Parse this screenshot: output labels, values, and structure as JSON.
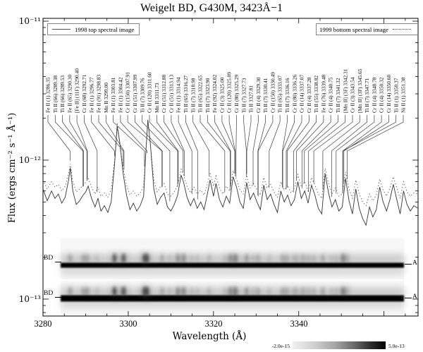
{
  "title": "Weigelt BD, G430M, 3423Å−1",
  "legend": {
    "series1": {
      "label": "1998 top spectral image",
      "style": "solid"
    },
    "series2": {
      "label": "1999 bottom spectral image",
      "style": "dotted"
    }
  },
  "axes": {
    "xlabel": "Wavelength (Å)",
    "ylabel": "Flux (ergs cm⁻² s⁻¹ Å⁻¹)",
    "x_ticks": [
      "3280",
      "3300",
      "3320",
      "3340"
    ],
    "y_ticks": [
      "10⁻¹¹",
      "10⁻¹²",
      "10⁻¹³"
    ]
  },
  "strip_labels": {
    "left": [
      "BD",
      "BD"
    ],
    "right": [
      "A",
      "A"
    ]
  },
  "colorbar": {
    "min_label": "-2.0e-15",
    "max_label": "5.0e-13"
  },
  "spectral_lines": [
    {
      "label": "Fe II (1) 3286.35",
      "wl": 3286.35
    },
    {
      "label": "Ti II (66) 3289.38",
      "wl": 3289.38
    },
    {
      "label": "Ti II (66) 3289.53",
      "wl": 3289.53
    },
    {
      "label": "Fe II (65) 3290.30",
      "wl": 3290.3
    },
    {
      "label": "[Fe II] (11F) 3290.40",
      "wl": 3290.4
    },
    {
      "label": "Cr II (68) 3292.71",
      "wl": 3292.71
    },
    {
      "label": "Fe II (1) 3296.77",
      "wl": 3296.77
    },
    {
      "label": "Fe II (91) 3298.83",
      "wl": 3298.83
    },
    {
      "label": "Mn II 3299.00",
      "wl": 3299.0
    },
    {
      "label": "Fe II (1) 3303.81",
      "wl": 3303.81
    },
    {
      "label": "Fe II (1) 3304.42",
      "wl": 3304.42
    },
    {
      "label": "Cr II (150) 3307.91",
      "wl": 3307.91
    },
    {
      "label": "Cr II (51) 3307.99",
      "wl": 3307.99
    },
    {
      "label": "Ti II (7) 3309.76",
      "wl": 3309.76
    },
    {
      "label": "Cr II (120) 3311.60",
      "wl": 3311.6
    },
    {
      "label": "Mn II 3311.73",
      "wl": 3311.73
    },
    {
      "label": "Cr II (51) 3312.88",
      "wl": 3312.88
    },
    {
      "label": "Cr II (51) 3313.13",
      "wl": 3313.13
    },
    {
      "label": "Fe II (1) 3314.94",
      "wl": 3314.94
    },
    {
      "label": "Ti II (65) 3316.27",
      "wl": 3316.27
    },
    {
      "label": "Ti II (7) 3318.98",
      "wl": 3318.98
    },
    {
      "label": "Ti II (65) 3322.65",
      "wl": 3322.65
    },
    {
      "label": "Ti II (7) 3323.90",
      "wl": 3323.9
    },
    {
      "label": "Fe II (92) 3324.02",
      "wl": 3324.02
    },
    {
      "label": "Cr II (3) 3325.00",
      "wl": 3325.0
    },
    {
      "label": "Cr II (120) 3325.09",
      "wl": 3325.09
    },
    {
      "label": "Cr II (80) 3325.29",
      "wl": 3325.29
    },
    {
      "label": "Ti II (7) 3327.73",
      "wl": 3327.73
    },
    {
      "label": "Ti II 3327.81",
      "wl": 3327.81
    },
    {
      "label": "Cr II (4) 3329.30",
      "wl": 3329.3
    },
    {
      "label": "Ti II (7) 3330.41",
      "wl": 3330.41
    },
    {
      "label": "Cr II (150) 3330.49",
      "wl": 3330.49
    },
    {
      "label": "Ti II (65) 3333.07",
      "wl": 3333.07
    },
    {
      "label": "Ti II (7) 3336.16",
      "wl": 3336.16
    },
    {
      "label": "Cr II (80) 3336.26",
      "wl": 3336.26
    },
    {
      "label": "Cr II (14) 3337.07",
      "wl": 3337.07
    },
    {
      "label": "Cr II (4) 3337.28",
      "wl": 3337.28
    },
    {
      "label": "Ti II (55) 3338.82",
      "wl": 3338.82
    },
    {
      "label": "Fe II (76) 3339.48",
      "wl": 3339.48
    },
    {
      "label": "Cr II (4) 3340.75",
      "wl": 3340.75
    },
    {
      "label": "Ti II (7) 3341.32",
      "wl": 3341.32
    },
    {
      "label": "[Mn II] (3F) 3342.31",
      "wl": 3342.31
    },
    {
      "label": "Cr II (3) 3343.54",
      "wl": 3343.54
    },
    {
      "label": "[Mn II] (3F) 3345.65",
      "wl": 3345.65
    },
    {
      "label": "Ti II (7) 3347.71",
      "wl": 3347.71
    },
    {
      "label": "Cr II (4) 3348.78",
      "wl": 3348.78
    },
    {
      "label": "Cr II (4) 3350.32",
      "wl": 3350.32
    },
    {
      "label": "Cr II (14) 3350.60",
      "wl": 3350.6
    },
    {
      "label": "Ti II (1) 3350.37",
      "wl": 3350.37
    },
    {
      "label": "Ni II (1) 3351.38",
      "wl": 3351.38
    }
  ],
  "chart_data": {
    "type": "line",
    "title": "Weigelt BD, G430M, 3423Å−1",
    "xlabel": "Wavelength (Å)",
    "ylabel": "Flux (ergs cm⁻² s⁻¹ Å⁻¹)",
    "x_range": [
      3280,
      3368
    ],
    "ylim_exponents": [
      -13,
      -11
    ],
    "y_scale": "log",
    "legend_position": "top",
    "x": [
      3280.0,
      3281.0,
      3282.0,
      3282.8,
      3283.6,
      3284.4,
      3285.2,
      3286.0,
      3286.4,
      3287.0,
      3287.8,
      3288.6,
      3289.4,
      3290.0,
      3290.6,
      3291.4,
      3292.2,
      3292.9,
      3293.6,
      3294.4,
      3295.2,
      3296.0,
      3296.8,
      3297.4,
      3298.0,
      3298.8,
      3299.6,
      3300.4,
      3301.2,
      3302.0,
      3302.8,
      3303.6,
      3304.1,
      3304.6,
      3305.2,
      3306.0,
      3306.8,
      3307.6,
      3308.4,
      3309.2,
      3310.0,
      3310.8,
      3311.6,
      3312.4,
      3313.0,
      3313.8,
      3314.6,
      3315.4,
      3316.2,
      3317.0,
      3317.8,
      3318.6,
      3319.2,
      3320.0,
      3320.6,
      3321.4,
      3322.2,
      3323.0,
      3323.8,
      3324.6,
      3325.4,
      3326.2,
      3327.0,
      3327.8,
      3328.6,
      3329.4,
      3330.2,
      3331.0,
      3331.8,
      3332.6,
      3333.4,
      3334.2,
      3335.0,
      3335.8,
      3336.6,
      3337.4,
      3338.2,
      3339.0,
      3339.8,
      3340.6,
      3341.4,
      3342.2,
      3343.0,
      3343.8,
      3344.6,
      3345.4,
      3346.2,
      3347.0,
      3347.8,
      3348.6,
      3349.4,
      3350.2,
      3351.0,
      3351.8,
      3352.6,
      3353.4,
      3354.2,
      3355.0,
      3355.8,
      3356.6,
      3357.4,
      3358.2,
      3359.0,
      3359.8,
      3360.6,
      3361.4,
      3362.2,
      3363.0,
      3363.8,
      3364.6,
      3365.4,
      3366.2,
      3367.0,
      3368.0
    ],
    "series": [
      {
        "name": "1998 top spectral image",
        "style": "solid",
        "flux_unit": "1e-13 ergs cm-2 s-1 A-1",
        "flux_1e13": [
          6.2,
          5.1,
          6.0,
          5.3,
          5.7,
          4.9,
          5.4,
          7.2,
          8.8,
          6.0,
          4.8,
          5.1,
          5.6,
          5.9,
          6.5,
          5.3,
          4.6,
          5.3,
          4.3,
          4.7,
          4.2,
          5.0,
          9.5,
          17.5,
          13.5,
          8.0,
          5.6,
          4.4,
          4.9,
          4.3,
          4.7,
          5.5,
          11.0,
          19.5,
          13.0,
          6.2,
          4.8,
          5.4,
          5.8,
          4.6,
          4.3,
          4.8,
          5.6,
          7.8,
          6.9,
          5.4,
          4.7,
          5.3,
          4.5,
          5.0,
          4.4,
          5.8,
          7.2,
          5.5,
          6.8,
          5.2,
          4.6,
          5.5,
          4.9,
          7.6,
          6.4,
          5.0,
          4.5,
          6.9,
          5.2,
          5.8,
          5.0,
          4.4,
          6.6,
          5.2,
          5.7,
          4.8,
          4.2,
          6.0,
          5.0,
          5.6,
          4.7,
          5.2,
          7.0,
          5.3,
          6.0,
          4.9,
          6.6,
          5.6,
          4.5,
          4.1,
          8.0,
          5.8,
          4.6,
          5.2,
          4.3,
          4.6,
          7.4,
          5.1,
          4.1,
          6.2,
          4.5,
          3.8,
          3.4,
          4.6,
          3.9,
          4.4,
          6.4,
          5.0,
          4.3,
          5.2,
          6.7,
          5.2,
          4.1,
          6.0,
          4.8,
          4.3,
          4.7,
          4.5
        ]
      },
      {
        "name": "1999 bottom spectral image",
        "style": "dotted",
        "flux_unit": "1e-13 ergs cm-2 s-1 A-1",
        "flux_1e13": [
          7.2,
          6.2,
          7.0,
          6.4,
          6.7,
          6.0,
          6.5,
          8.0,
          9.4,
          7.0,
          5.9,
          6.2,
          6.6,
          6.9,
          7.4,
          6.4,
          5.7,
          6.4,
          5.5,
          5.8,
          5.4,
          6.1,
          10.1,
          18.6,
          13.6,
          8.7,
          6.6,
          5.6,
          6.0,
          5.5,
          5.8,
          6.5,
          11.4,
          18.9,
          13.1,
          7.2,
          5.9,
          6.5,
          6.8,
          5.7,
          5.5,
          5.9,
          6.6,
          8.6,
          7.8,
          6.5,
          5.8,
          6.4,
          5.7,
          6.1,
          5.6,
          6.8,
          8.0,
          6.5,
          7.7,
          6.3,
          5.7,
          6.5,
          6.0,
          8.4,
          7.3,
          6.1,
          5.7,
          7.8,
          6.3,
          6.8,
          6.1,
          5.6,
          7.5,
          6.3,
          6.7,
          5.9,
          5.4,
          7.0,
          6.1,
          6.6,
          5.8,
          6.3,
          7.9,
          6.4,
          7.0,
          6.0,
          7.5,
          6.6,
          5.7,
          5.3,
          8.7,
          6.8,
          5.7,
          6.3,
          5.5,
          5.7,
          8.2,
          6.2,
          5.3,
          7.2,
          5.7,
          5.0,
          4.7,
          5.7,
          5.1,
          5.6,
          7.3,
          6.1,
          5.5,
          6.3,
          7.6,
          6.3,
          5.3,
          7.0,
          5.9,
          5.5,
          5.8,
          5.7
        ]
      }
    ]
  }
}
